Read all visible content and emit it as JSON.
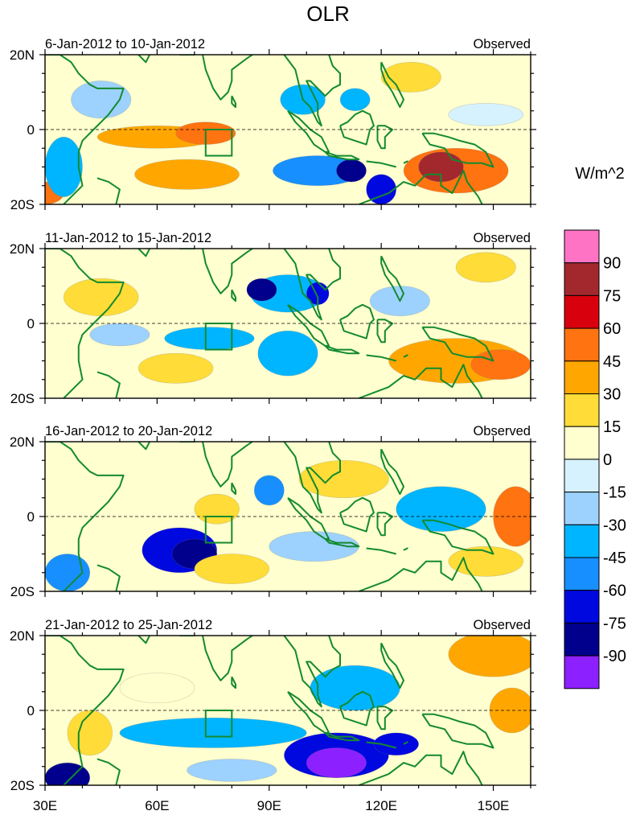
{
  "title": "OLR",
  "units_label": "W/m^2",
  "panel_right_label": "Observed",
  "lat_ticks": [
    "20N",
    "0",
    "20S"
  ],
  "lon_ticks": [
    "30E",
    "60E",
    "90E",
    "120E",
    "150E"
  ],
  "colorbar": {
    "labels": [
      "90",
      "75",
      "60",
      "45",
      "30",
      "15",
      "0",
      "-15",
      "-30",
      "-45",
      "-60",
      "-75",
      "-90"
    ],
    "colors": [
      "#ff73c4",
      "#a3282d",
      "#d9000d",
      "#ff7310",
      "#ffa700",
      "#ffdc37",
      "#ffffcf",
      "#d7f2ff",
      "#9dd2ff",
      "#00b5ff",
      "#178fff",
      "#0008e0",
      "#00008c",
      "#8c20ff"
    ]
  },
  "chart_data": {
    "type": "heatmap",
    "title": "OLR",
    "units": "W/m^2",
    "lon_range": [
      30,
      160
    ],
    "lat_range": [
      -20,
      20
    ],
    "xlabel": "",
    "ylabel": "",
    "contour_levels": [
      -90,
      -75,
      -60,
      -45,
      -30,
      -15,
      0,
      15,
      30,
      45,
      60,
      75,
      90
    ],
    "box": {
      "lon": [
        73,
        80
      ],
      "lat": [
        -7,
        0
      ]
    },
    "panels": [
      {
        "period": "6-Jan-2012 to 10-Jan-2012",
        "label": "Observed",
        "anomalies": [
          {
            "lon": 60,
            "lat": -2,
            "rx": 16,
            "ry": 3,
            "value": 35
          },
          {
            "lon": 73,
            "lat": -1,
            "rx": 8,
            "ry": 3,
            "value": 50
          },
          {
            "lon": 68,
            "lat": -12,
            "rx": 14,
            "ry": 4,
            "value": 30
          },
          {
            "lon": 30,
            "lat": -17,
            "rx": 5,
            "ry": 3,
            "value": 55
          },
          {
            "lon": 35,
            "lat": -10,
            "rx": 5,
            "ry": 8,
            "value": -40
          },
          {
            "lon": 103,
            "lat": -11,
            "rx": 12,
            "ry": 4,
            "value": -50
          },
          {
            "lon": 112,
            "lat": -11,
            "rx": 4,
            "ry": 3,
            "value": -80
          },
          {
            "lon": 120,
            "lat": -16,
            "rx": 4,
            "ry": 4,
            "value": -70
          },
          {
            "lon": 99,
            "lat": 8,
            "rx": 6,
            "ry": 4,
            "value": -45
          },
          {
            "lon": 113,
            "lat": 8,
            "rx": 4,
            "ry": 3,
            "value": -35
          },
          {
            "lon": 140,
            "lat": -11,
            "rx": 14,
            "ry": 6,
            "value": 55
          },
          {
            "lon": 136,
            "lat": -10,
            "rx": 6,
            "ry": 4,
            "value": 75
          },
          {
            "lon": 128,
            "lat": 14,
            "rx": 8,
            "ry": 4,
            "value": 15
          },
          {
            "lon": 45,
            "lat": 8,
            "rx": 8,
            "ry": 5,
            "value": -20
          },
          {
            "lon": 148,
            "lat": 4,
            "rx": 10,
            "ry": 3,
            "value": -15
          }
        ]
      },
      {
        "period": "11-Jan-2012 to 15-Jan-2012",
        "label": "Observed",
        "anomalies": [
          {
            "lon": 95,
            "lat": 8,
            "rx": 10,
            "ry": 5,
            "value": -45
          },
          {
            "lon": 88,
            "lat": 9,
            "rx": 4,
            "ry": 3,
            "value": -80
          },
          {
            "lon": 103,
            "lat": 8,
            "rx": 3,
            "ry": 3,
            "value": -75
          },
          {
            "lon": 74,
            "lat": -4,
            "rx": 12,
            "ry": 3,
            "value": -35
          },
          {
            "lon": 95,
            "lat": -8,
            "rx": 8,
            "ry": 6,
            "value": -35
          },
          {
            "lon": 50,
            "lat": -3,
            "rx": 8,
            "ry": 3,
            "value": -25
          },
          {
            "lon": 140,
            "lat": -10,
            "rx": 18,
            "ry": 6,
            "value": 40
          },
          {
            "lon": 152,
            "lat": -11,
            "rx": 8,
            "ry": 4,
            "value": 48
          },
          {
            "lon": 65,
            "lat": -12,
            "rx": 10,
            "ry": 4,
            "value": 22
          },
          {
            "lon": 148,
            "lat": 15,
            "rx": 8,
            "ry": 4,
            "value": 20
          },
          {
            "lon": 45,
            "lat": 7,
            "rx": 10,
            "ry": 5,
            "value": 18
          },
          {
            "lon": 125,
            "lat": 6,
            "rx": 8,
            "ry": 4,
            "value": -20
          }
        ]
      },
      {
        "period": "16-Jan-2012 to 20-Jan-2012",
        "label": "Observed",
        "anomalies": [
          {
            "lon": 66,
            "lat": -9,
            "rx": 10,
            "ry": 6,
            "value": -65
          },
          {
            "lon": 70,
            "lat": -10,
            "rx": 6,
            "ry": 4,
            "value": -80
          },
          {
            "lon": 36,
            "lat": -15,
            "rx": 6,
            "ry": 5,
            "value": -55
          },
          {
            "lon": 90,
            "lat": 7,
            "rx": 4,
            "ry": 4,
            "value": -55
          },
          {
            "lon": 136,
            "lat": 2,
            "rx": 12,
            "ry": 6,
            "value": -40
          },
          {
            "lon": 156,
            "lat": 0,
            "rx": 6,
            "ry": 8,
            "value": 45
          },
          {
            "lon": 110,
            "lat": 10,
            "rx": 12,
            "ry": 5,
            "value": 15
          },
          {
            "lon": 102,
            "lat": -8,
            "rx": 12,
            "ry": 4,
            "value": -22
          },
          {
            "lon": 76,
            "lat": 2,
            "rx": 6,
            "ry": 4,
            "value": 22
          },
          {
            "lon": 80,
            "lat": -14,
            "rx": 10,
            "ry": 4,
            "value": 16
          },
          {
            "lon": 148,
            "lat": -12,
            "rx": 10,
            "ry": 4,
            "value": 15
          }
        ]
      },
      {
        "period": "21-Jan-2012 to 25-Jan-2012",
        "label": "Observed",
        "anomalies": [
          {
            "lon": 75,
            "lat": -6,
            "rx": 25,
            "ry": 4,
            "value": -40
          },
          {
            "lon": 108,
            "lat": -12,
            "rx": 14,
            "ry": 6,
            "value": -70
          },
          {
            "lon": 108,
            "lat": -14,
            "rx": 8,
            "ry": 4,
            "value": -95
          },
          {
            "lon": 113,
            "lat": 6,
            "rx": 12,
            "ry": 6,
            "value": -40
          },
          {
            "lon": 124,
            "lat": -9,
            "rx": 6,
            "ry": 3,
            "value": -70
          },
          {
            "lon": 36,
            "lat": -18,
            "rx": 6,
            "ry": 4,
            "value": -80
          },
          {
            "lon": 150,
            "lat": 15,
            "rx": 12,
            "ry": 6,
            "value": 30
          },
          {
            "lon": 155,
            "lat": 0,
            "rx": 6,
            "ry": 6,
            "value": 40
          },
          {
            "lon": 42,
            "lat": -6,
            "rx": 6,
            "ry": 6,
            "value": 20
          },
          {
            "lon": 80,
            "lat": -16,
            "rx": 12,
            "ry": 3,
            "value": -30
          },
          {
            "lon": 60,
            "lat": 6,
            "rx": 10,
            "ry": 4,
            "value": 12
          }
        ]
      }
    ]
  }
}
